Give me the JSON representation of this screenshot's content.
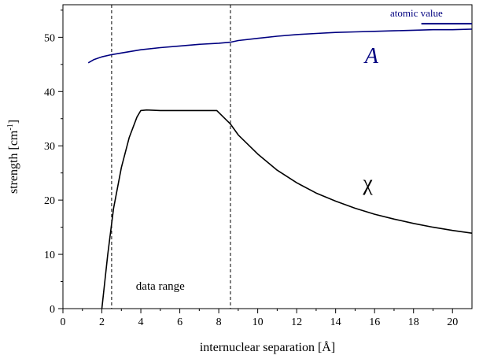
{
  "chart_data": {
    "type": "line",
    "xlabel": "internuclear separation [Å]",
    "ylabel_main": "strength [cm",
    "ylabel_sup": "-1",
    "ylabel_end": "]",
    "xlim": [
      0,
      21
    ],
    "ylim": [
      0,
      56
    ],
    "xticks": [
      0,
      2,
      4,
      6,
      8,
      10,
      12,
      14,
      16,
      18,
      20
    ],
    "yticks": [
      0,
      10,
      20,
      30,
      40,
      50
    ],
    "grid": false,
    "series": [
      {
        "name": "A",
        "color": "#000080",
        "x": [
          1.3,
          1.6,
          2.0,
          2.5,
          3.0,
          4.0,
          5.0,
          6.0,
          7.0,
          8.0,
          8.6,
          9.0,
          10.0,
          11.0,
          12.0,
          13.0,
          14.0,
          15.0,
          16.0,
          17.0,
          18.0,
          19.0,
          20.0,
          21.0
        ],
        "y": [
          45.3,
          45.9,
          46.4,
          46.8,
          47.1,
          47.7,
          48.1,
          48.4,
          48.7,
          48.9,
          49.1,
          49.4,
          49.8,
          50.2,
          50.5,
          50.7,
          50.9,
          51.0,
          51.1,
          51.2,
          51.3,
          51.4,
          51.4,
          51.5
        ]
      },
      {
        "name": "χ",
        "color": "#000000",
        "x": [
          2.0,
          2.3,
          2.6,
          3.0,
          3.4,
          3.8,
          4.0,
          4.3,
          5.0,
          6.0,
          7.0,
          7.9,
          8.6,
          9.0,
          10.0,
          11.0,
          12.0,
          13.0,
          14.0,
          15.0,
          16.0,
          17.0,
          18.0,
          19.0,
          20.0,
          21.0
        ],
        "y": [
          0,
          10.0,
          18.5,
          26.0,
          31.5,
          35.3,
          36.5,
          36.6,
          36.5,
          36.5,
          36.5,
          36.5,
          34.0,
          32.0,
          28.5,
          25.5,
          23.2,
          21.3,
          19.8,
          18.5,
          17.4,
          16.5,
          15.7,
          15.0,
          14.4,
          13.9
        ]
      }
    ],
    "vlines": [
      2.5,
      8.6
    ],
    "annotations": {
      "data_range": {
        "text": "data range",
        "x": 5.0,
        "y": 3.5
      },
      "atomic_value": {
        "text": "atomic value",
        "line_x": [
          18.4,
          21.0
        ],
        "y": 52.5
      }
    }
  }
}
